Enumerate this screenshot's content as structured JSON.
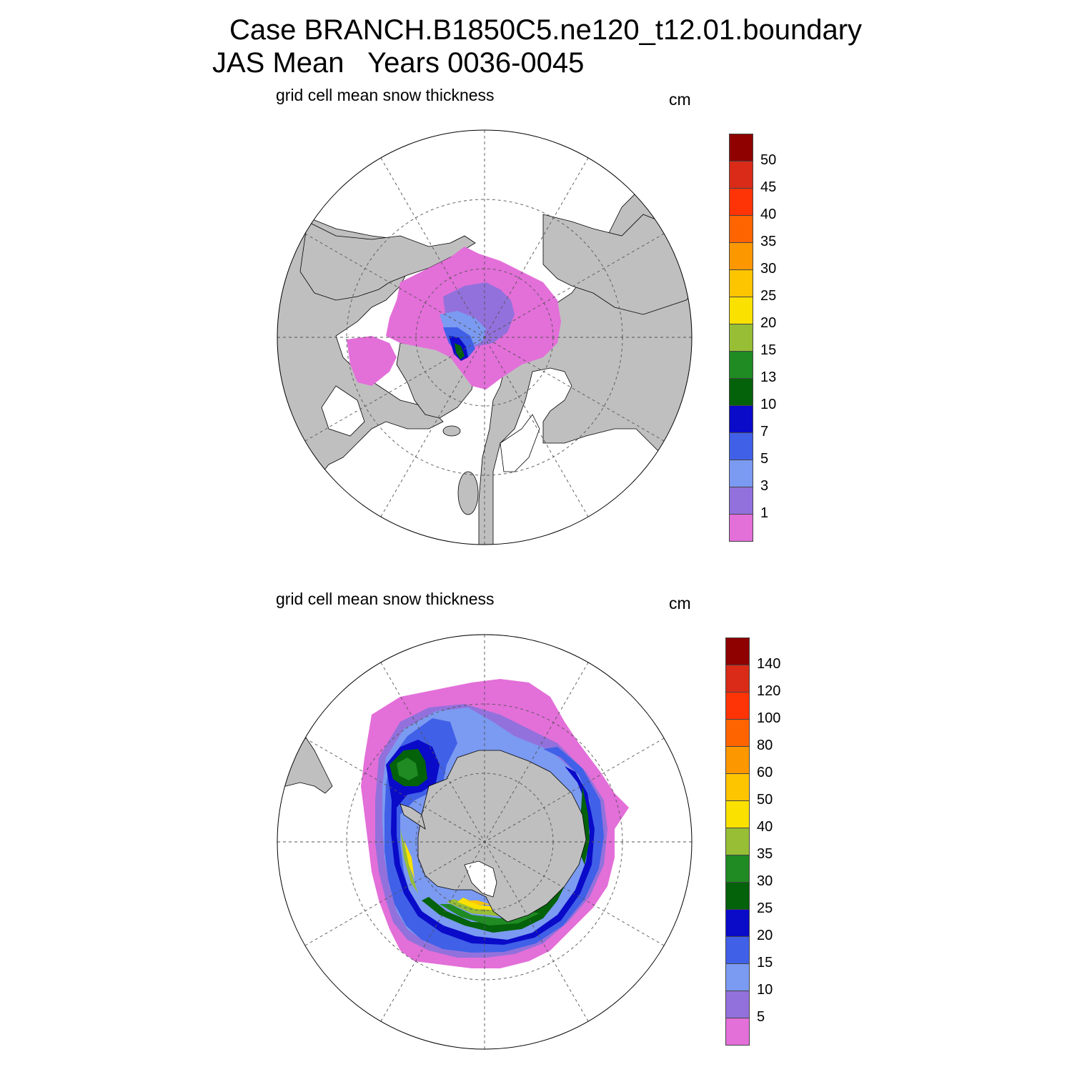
{
  "title": {
    "line1": "Case BRANCH.B1850C5.ne120_t12.01.boundary",
    "line2": "JAS Mean   Years 0036-0045"
  },
  "panels": [
    {
      "id": "north",
      "label": "grid cell mean snow thickness",
      "units": "cm",
      "colorbar": {
        "colors": [
          "#e36fd9",
          "#9271dc",
          "#7b9af1",
          "#4060e8",
          "#0a0ac9",
          "#04620a",
          "#1f8b22",
          "#97be35",
          "#fae100",
          "#fdc400",
          "#fd9700",
          "#fe6400",
          "#fe3407",
          "#d92b17",
          "#8f0000"
        ],
        "ticks": [
          "1",
          "3",
          "5",
          "7",
          "10",
          "13",
          "15",
          "20",
          "25",
          "30",
          "35",
          "40",
          "45",
          "50"
        ]
      }
    },
    {
      "id": "south",
      "label": "grid cell mean snow thickness",
      "units": "cm",
      "colorbar": {
        "colors": [
          "#e36fd9",
          "#9271dc",
          "#7b9af1",
          "#4060e8",
          "#0a0ac9",
          "#04620a",
          "#1f8b22",
          "#97be35",
          "#fae100",
          "#fdc400",
          "#fd9700",
          "#fe6400",
          "#fe3407",
          "#d92b17",
          "#8f0000"
        ],
        "ticks": [
          "5",
          "10",
          "15",
          "20",
          "25",
          "30",
          "35",
          "40",
          "50",
          "60",
          "80",
          "100",
          "120",
          "140"
        ]
      }
    }
  ],
  "colors": {
    "land": "#bfbfbf",
    "ocean": "#ffffff",
    "outline": "#000000"
  }
}
